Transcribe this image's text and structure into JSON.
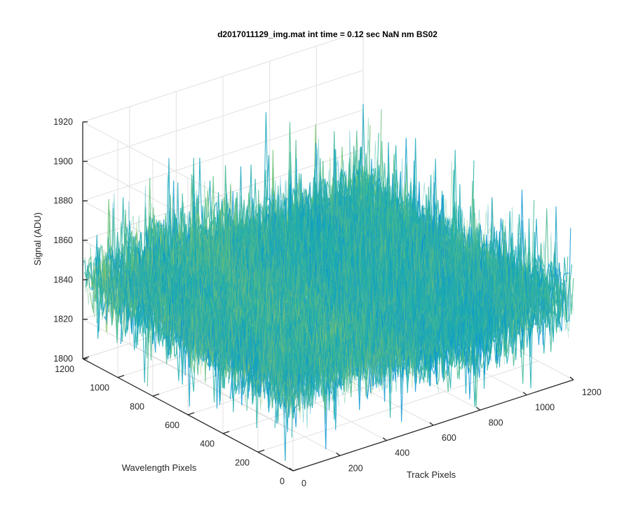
{
  "chart_data": {
    "type": "surface",
    "title": "d2017011129_img.mat int time = 0.12 sec  NaN nm BS02",
    "xlabel": "Track Pixels",
    "ylabel": "Wavelength Pixels",
    "zlabel": "Signal (ADU)",
    "xlim": [
      0,
      1200
    ],
    "ylim": [
      0,
      1200
    ],
    "zlim": [
      1800,
      1920
    ],
    "x_ticks": [
      "0",
      "200",
      "400",
      "600",
      "800",
      "1000",
      "1200"
    ],
    "y_ticks": [
      "0",
      "200",
      "400",
      "600",
      "800",
      "1000",
      "1200"
    ],
    "z_ticks": [
      "1800",
      "1820",
      "1840",
      "1860",
      "1880",
      "1900",
      "1920"
    ],
    "grid": true,
    "colormap": "parula",
    "surface_extent": {
      "x": [
        1,
        1200
      ],
      "y": [
        1,
        1200
      ]
    },
    "signal_summary": {
      "min": 1802,
      "typical": 1840,
      "max": 1915
    },
    "colors": {
      "low": "#0a8ae0",
      "mid": "#2ab0a0",
      "high": "#d8c858",
      "axis": "#262626",
      "grid": "#e0e0e0"
    }
  }
}
